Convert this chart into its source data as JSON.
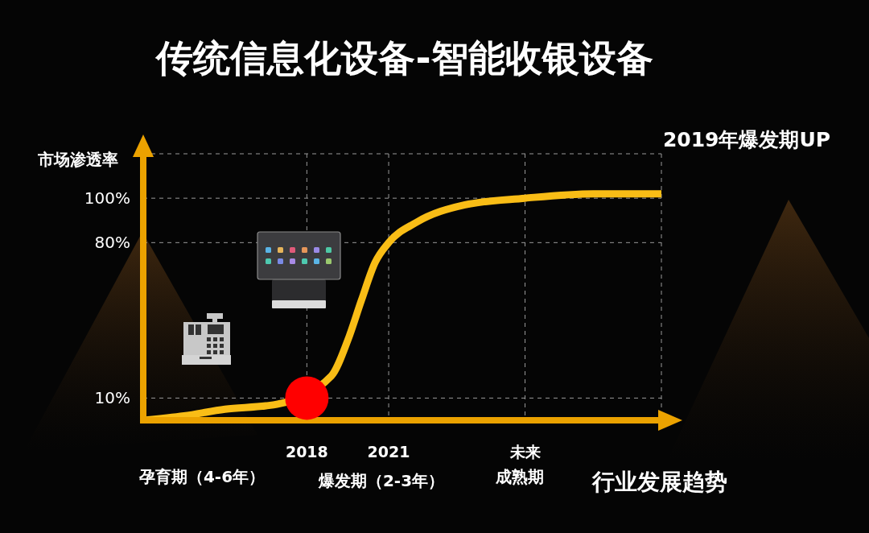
{
  "chart_data": {
    "type": "line",
    "title": "传统信息化设备-智能收银设备",
    "xlabel": "行业发展趋势",
    "ylabel": "市场渗透率",
    "annotations": [
      "2019年爆发期UP",
      "孕育期（4-6年）",
      "爆发期（2-3年）",
      "成熟期"
    ],
    "series": [
      {
        "color": "#f9bd16",
        "x": [
          2012,
          2013.5,
          2015,
          2016.5,
          2016.9,
          2018.9,
          2019.5,
          2020,
          2020.5,
          2021,
          2022,
          2023.8,
          2026,
          2028.5,
          2031
        ],
        "values": [
          0,
          2,
          5,
          6.5,
          7.2,
          20,
          36,
          54,
          71,
          80,
          89,
          97,
          100,
          102,
          102
        ]
      },
      {
        "type": "scatter",
        "color": "#ff0000",
        "marker": "circle",
        "x": [
          2018
        ],
        "values": [
          10
        ]
      }
    ],
    "xlim": [
      2012,
      2031
    ],
    "xticks": [
      2018,
      2021,
      {
        "value": 2026,
        "label": "未来"
      }
    ],
    "ylim": [
      0,
      120
    ],
    "yticks": [
      {
        "value": 10,
        "label": "10%"
      },
      {
        "value": 80,
        "label": "80%"
      },
      {
        "value": 100,
        "label": "100%"
      }
    ],
    "grid": true
  }
}
